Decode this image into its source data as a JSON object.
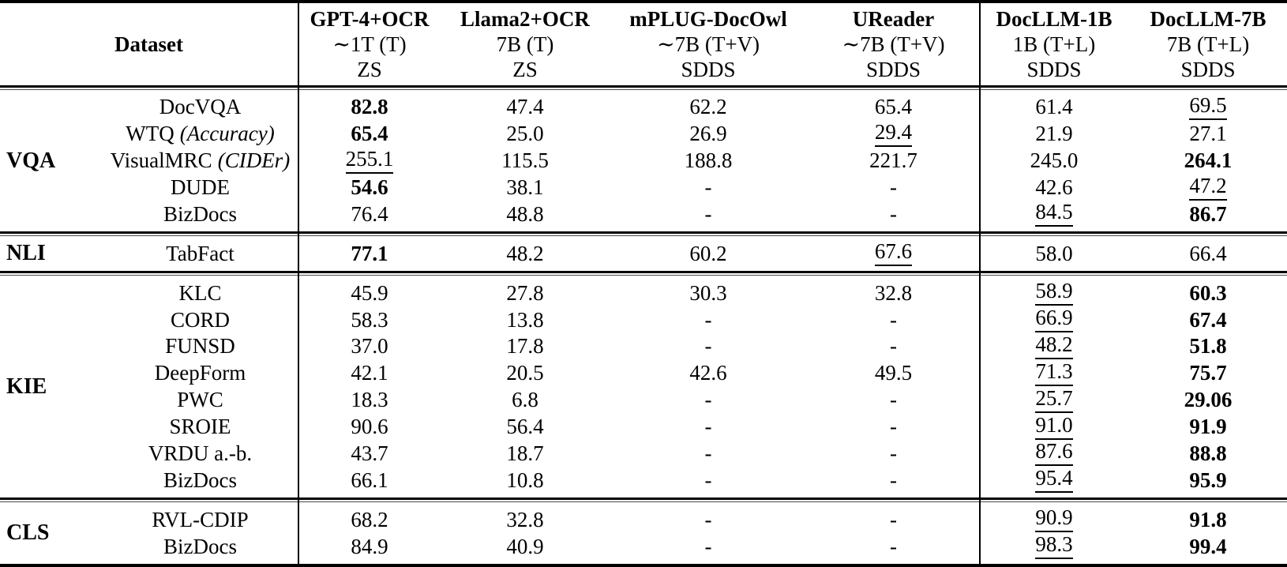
{
  "table": {
    "header": {
      "dataset_label": "Dataset",
      "columns": [
        {
          "name": "GPT-4+OCR",
          "size": "∼1T (T)",
          "setting": "ZS"
        },
        {
          "name": "Llama2+OCR",
          "size": "7B (T)",
          "setting": "ZS"
        },
        {
          "name": "mPLUG-DocOwl",
          "size": "∼7B (T+V)",
          "setting": "SDDS"
        },
        {
          "name": "UReader",
          "size": "∼7B (T+V)",
          "setting": "SDDS"
        },
        {
          "name": "DocLLM-1B",
          "size": "1B (T+L)",
          "setting": "SDDS"
        },
        {
          "name": "DocLLM-7B",
          "size": "7B (T+L)",
          "setting": "SDDS"
        }
      ]
    },
    "sections": [
      {
        "group": "VQA",
        "rows": [
          {
            "dataset": "DocVQA",
            "metric": "",
            "cells": [
              [
                "82.8",
                "bold"
              ],
              [
                "47.4",
                ""
              ],
              [
                "62.2",
                ""
              ],
              [
                "65.4",
                ""
              ],
              [
                "61.4",
                ""
              ],
              [
                "69.5",
                "underline"
              ]
            ]
          },
          {
            "dataset": "WTQ",
            "metric": "(Accuracy)",
            "cells": [
              [
                "65.4",
                "bold"
              ],
              [
                "25.0",
                ""
              ],
              [
                "26.9",
                ""
              ],
              [
                "29.4",
                "underline"
              ],
              [
                "21.9",
                ""
              ],
              [
                "27.1",
                ""
              ]
            ]
          },
          {
            "dataset": "VisualMRC",
            "metric": "(CIDEr)",
            "cells": [
              [
                "255.1",
                "underline"
              ],
              [
                "115.5",
                ""
              ],
              [
                "188.8",
                ""
              ],
              [
                "221.7",
                ""
              ],
              [
                "245.0",
                ""
              ],
              [
                "264.1",
                "bold"
              ]
            ]
          },
          {
            "dataset": "DUDE",
            "metric": "",
            "cells": [
              [
                "54.6",
                "bold"
              ],
              [
                "38.1",
                ""
              ],
              [
                "-",
                ""
              ],
              [
                "-",
                ""
              ],
              [
                "42.6",
                ""
              ],
              [
                "47.2",
                "underline"
              ]
            ]
          },
          {
            "dataset": "BizDocs",
            "metric": "",
            "cells": [
              [
                "76.4",
                ""
              ],
              [
                "48.8",
                ""
              ],
              [
                "-",
                ""
              ],
              [
                "-",
                ""
              ],
              [
                "84.5",
                "underline"
              ],
              [
                "86.7",
                "bold"
              ]
            ]
          }
        ]
      },
      {
        "group": "NLI",
        "rows": [
          {
            "dataset": "TabFact",
            "metric": "",
            "cells": [
              [
                "77.1",
                "bold"
              ],
              [
                "48.2",
                ""
              ],
              [
                "60.2",
                ""
              ],
              [
                "67.6",
                "underline"
              ],
              [
                "58.0",
                ""
              ],
              [
                "66.4",
                ""
              ]
            ]
          }
        ]
      },
      {
        "group": "KIE",
        "rows": [
          {
            "dataset": "KLC",
            "metric": "",
            "cells": [
              [
                "45.9",
                ""
              ],
              [
                "27.8",
                ""
              ],
              [
                "30.3",
                ""
              ],
              [
                "32.8",
                ""
              ],
              [
                "58.9",
                "underline"
              ],
              [
                "60.3",
                "bold"
              ]
            ]
          },
          {
            "dataset": "CORD",
            "metric": "",
            "cells": [
              [
                "58.3",
                ""
              ],
              [
                "13.8",
                ""
              ],
              [
                "-",
                ""
              ],
              [
                "-",
                ""
              ],
              [
                "66.9",
                "underline"
              ],
              [
                "67.4",
                "bold"
              ]
            ]
          },
          {
            "dataset": "FUNSD",
            "metric": "",
            "cells": [
              [
                "37.0",
                ""
              ],
              [
                "17.8",
                ""
              ],
              [
                "-",
                ""
              ],
              [
                "-",
                ""
              ],
              [
                "48.2",
                "underline"
              ],
              [
                "51.8",
                "bold"
              ]
            ]
          },
          {
            "dataset": "DeepForm",
            "metric": "",
            "cells": [
              [
                "42.1",
                ""
              ],
              [
                "20.5",
                ""
              ],
              [
                "42.6",
                ""
              ],
              [
                "49.5",
                ""
              ],
              [
                "71.3",
                "underline"
              ],
              [
                "75.7",
                "bold"
              ]
            ]
          },
          {
            "dataset": "PWC",
            "metric": "",
            "cells": [
              [
                "18.3",
                ""
              ],
              [
                "6.8",
                ""
              ],
              [
                "-",
                ""
              ],
              [
                "-",
                ""
              ],
              [
                "25.7",
                "underline"
              ],
              [
                "29.06",
                "bold"
              ]
            ]
          },
          {
            "dataset": "SROIE",
            "metric": "",
            "cells": [
              [
                "90.6",
                ""
              ],
              [
                "56.4",
                ""
              ],
              [
                "-",
                ""
              ],
              [
                "-",
                ""
              ],
              [
                "91.0",
                "underline"
              ],
              [
                "91.9",
                "bold"
              ]
            ]
          },
          {
            "dataset": "VRDU a.-b.",
            "metric": "",
            "cells": [
              [
                "43.7",
                ""
              ],
              [
                "18.7",
                ""
              ],
              [
                "-",
                ""
              ],
              [
                "-",
                ""
              ],
              [
                "87.6",
                "underline"
              ],
              [
                "88.8",
                "bold"
              ]
            ]
          },
          {
            "dataset": "BizDocs",
            "metric": "",
            "cells": [
              [
                "66.1",
                ""
              ],
              [
                "10.8",
                ""
              ],
              [
                "-",
                ""
              ],
              [
                "-",
                ""
              ],
              [
                "95.4",
                "underline"
              ],
              [
                "95.9",
                "bold"
              ]
            ]
          }
        ]
      },
      {
        "group": "CLS",
        "rows": [
          {
            "dataset": "RVL-CDIP",
            "metric": "",
            "cells": [
              [
                "68.2",
                ""
              ],
              [
                "32.8",
                ""
              ],
              [
                "-",
                ""
              ],
              [
                "-",
                ""
              ],
              [
                "90.9",
                "underline"
              ],
              [
                "91.8",
                "bold"
              ]
            ]
          },
          {
            "dataset": "BizDocs",
            "metric": "",
            "cells": [
              [
                "84.9",
                ""
              ],
              [
                "40.9",
                ""
              ],
              [
                "-",
                ""
              ],
              [
                "-",
                ""
              ],
              [
                "98.3",
                "underline"
              ],
              [
                "99.4",
                "bold"
              ]
            ]
          }
        ]
      }
    ]
  },
  "colors": {
    "text": "#000000",
    "background": "#ffffff",
    "rule": "#000000"
  },
  "styles_legend": {
    "bold": "best score",
    "underline": "second-best score"
  }
}
